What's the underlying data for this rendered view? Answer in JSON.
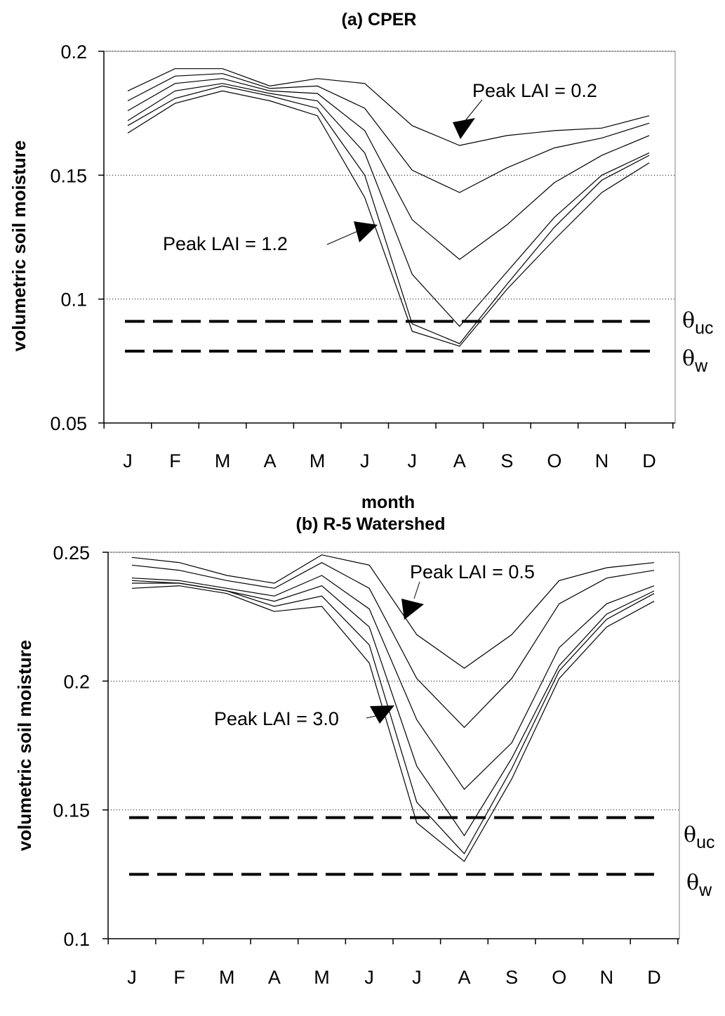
{
  "chart_data": [
    {
      "type": "line",
      "title": "(a) CPER",
      "xlabel": "month",
      "ylabel": "volumetric soil moisture",
      "categories": [
        "J",
        "F",
        "M",
        "A",
        "M",
        "J",
        "J",
        "A",
        "S",
        "O",
        "N",
        "D"
      ],
      "ylim": [
        0.05,
        0.2
      ],
      "yticks": [
        "0.05",
        "0.1",
        "0.15",
        "0.2"
      ],
      "grid": "dotted horizontal",
      "series": [
        {
          "values": [
            0.184,
            0.193,
            0.193,
            0.186,
            0.189,
            0.187,
            0.17,
            0.162,
            0.166,
            0.168,
            0.169,
            0.174
          ]
        },
        {
          "values": [
            0.18,
            0.19,
            0.191,
            0.185,
            0.186,
            0.177,
            0.152,
            0.143,
            0.153,
            0.161,
            0.165,
            0.171
          ]
        },
        {
          "values": [
            0.176,
            0.187,
            0.189,
            0.184,
            0.183,
            0.168,
            0.132,
            0.116,
            0.13,
            0.147,
            0.158,
            0.166
          ]
        },
        {
          "values": [
            0.172,
            0.184,
            0.187,
            0.183,
            0.18,
            0.159,
            0.11,
            0.089,
            0.111,
            0.133,
            0.15,
            0.159
          ]
        },
        {
          "values": [
            0.17,
            0.181,
            0.186,
            0.182,
            0.177,
            0.15,
            0.09,
            0.082,
            0.106,
            0.129,
            0.148,
            0.158
          ]
        },
        {
          "values": [
            0.167,
            0.179,
            0.184,
            0.18,
            0.174,
            0.141,
            0.087,
            0.081,
            0.104,
            0.124,
            0.143,
            0.155
          ]
        }
      ],
      "thresholds": [
        {
          "label": "θ",
          "sub": "uc",
          "value": 0.091
        },
        {
          "label": "θ",
          "sub": "w",
          "value": 0.079
        }
      ],
      "annotations": [
        {
          "text": "Peak LAI = 0.2"
        },
        {
          "text": "Peak LAI = 1.2"
        }
      ]
    },
    {
      "type": "line",
      "title": "(b) R-5 Watershed",
      "xlabel": "",
      "ylabel": "volumetric soil moisture",
      "categories": [
        "J",
        "F",
        "M",
        "A",
        "M",
        "J",
        "J",
        "A",
        "S",
        "O",
        "N",
        "D"
      ],
      "ylim": [
        0.1,
        0.25
      ],
      "yticks": [
        "0.1",
        "0.15",
        "0.2",
        "0.25"
      ],
      "grid": "dotted horizontal",
      "series": [
        {
          "values": [
            0.248,
            0.246,
            0.241,
            0.238,
            0.249,
            0.245,
            0.218,
            0.205,
            0.218,
            0.239,
            0.244,
            0.246
          ]
        },
        {
          "values": [
            0.245,
            0.243,
            0.239,
            0.236,
            0.246,
            0.236,
            0.201,
            0.182,
            0.201,
            0.23,
            0.24,
            0.243
          ]
        },
        {
          "values": [
            0.24,
            0.239,
            0.236,
            0.233,
            0.241,
            0.228,
            0.185,
            0.158,
            0.176,
            0.213,
            0.23,
            0.237
          ]
        },
        {
          "values": [
            0.239,
            0.238,
            0.235,
            0.231,
            0.237,
            0.221,
            0.167,
            0.14,
            0.17,
            0.206,
            0.226,
            0.235
          ]
        },
        {
          "values": [
            0.238,
            0.238,
            0.235,
            0.229,
            0.233,
            0.214,
            0.153,
            0.133,
            0.166,
            0.204,
            0.224,
            0.234
          ]
        },
        {
          "values": [
            0.236,
            0.237,
            0.234,
            0.227,
            0.229,
            0.207,
            0.145,
            0.13,
            0.162,
            0.201,
            0.221,
            0.231
          ]
        }
      ],
      "thresholds": [
        {
          "label": "θ",
          "sub": "uc",
          "value": 0.147
        },
        {
          "label": "θ",
          "sub": "w",
          "value": 0.125
        }
      ],
      "annotations": [
        {
          "text": "Peak LAI = 0.5"
        },
        {
          "text": "Peak LAI = 3.0"
        }
      ]
    }
  ]
}
